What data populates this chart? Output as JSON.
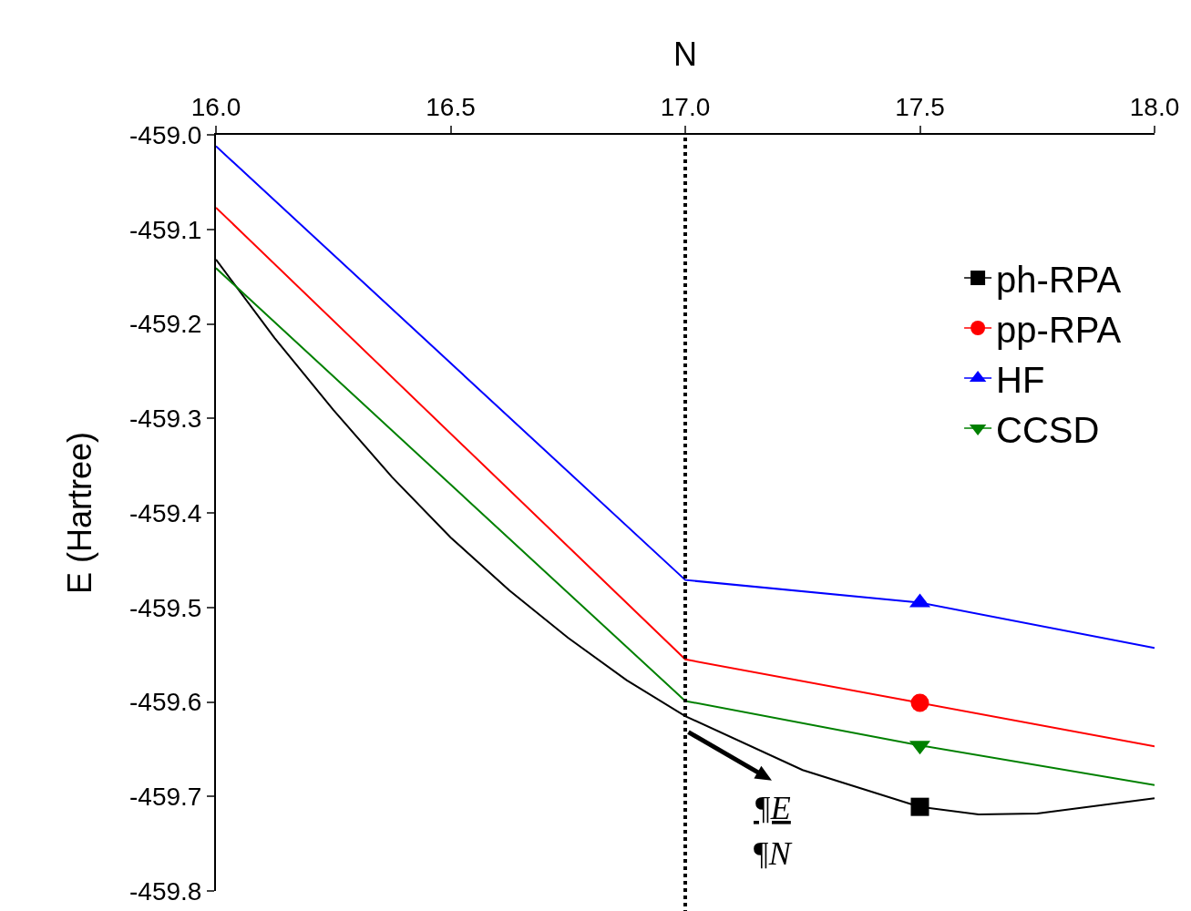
{
  "chart_data": {
    "type": "line",
    "xlabel": "N",
    "ylabel": "E (Hartree)",
    "xlim": [
      16,
      18
    ],
    "xticks": [
      {
        "value": 16,
        "label": "16.0"
      },
      16.5,
      {
        "value": 17,
        "label": "17.0"
      },
      17.5,
      {
        "value": 18,
        "label": "18.0"
      }
    ],
    "ylim": [
      -459.8,
      -459.0
    ],
    "yticks": [
      {
        "value": -459.8,
        "label": "-459.8"
      },
      {
        "value": -459.7,
        "label": "-459.7"
      },
      {
        "value": -459.6,
        "label": "-459.6"
      },
      {
        "value": -459.5,
        "label": "-459.5"
      },
      {
        "value": -459.4,
        "label": "-459.4"
      },
      {
        "value": -459.3,
        "label": "-459.3"
      },
      {
        "value": -459.2,
        "label": "-459.2"
      },
      {
        "value": -459.1,
        "label": "-459.1"
      },
      {
        "value": -459.0,
        "label": "-459.0"
      }
    ],
    "grid": false,
    "legend": "top right",
    "line_style": "solid",
    "marker": "none",
    "series": [
      {
        "color": "#000000",
        "x": [
          16,
          16.125,
          16.25,
          16.375,
          16.5,
          16.625,
          16.75,
          16.875,
          17,
          17.25,
          17.5,
          17.625,
          17.75,
          18
        ],
        "values": [
          -459.132,
          -459.215,
          -459.291,
          -459.362,
          -459.426,
          -459.482,
          -459.532,
          -459.577,
          -459.615,
          -459.672,
          -459.711,
          -459.719,
          -459.718,
          -459.702
        ]
      },
      {
        "color": "#ff0000",
        "x": [
          16,
          17,
          17.5,
          18
        ],
        "values": [
          -459.077,
          -459.555,
          -459.601,
          -459.647
        ]
      },
      {
        "color": "#0000ff",
        "x": [
          16,
          17,
          17.5,
          18
        ],
        "values": [
          -459.012,
          -459.471,
          -459.495,
          -459.543
        ]
      },
      {
        "color": "#008000",
        "x": [
          16,
          17,
          17.5,
          18
        ],
        "values": [
          -459.141,
          -459.599,
          -459.646,
          -459.688
        ]
      },
      {
        "type": "scatter",
        "name": "ph-RPA",
        "color": "#000000",
        "marker": "square",
        "x": [
          17.5
        ],
        "values": [
          -459.711
        ]
      },
      {
        "type": "scatter",
        "name": "pp-RPA",
        "color": "#ff0000",
        "marker": "circle",
        "x": [
          17.5
        ],
        "values": [
          -459.601
        ]
      },
      {
        "type": "scatter",
        "name": "HF",
        "color": "#0000ff",
        "marker": "triangle",
        "x": [
          17.5
        ],
        "values": [
          -459.495
        ]
      },
      {
        "type": "scatter",
        "name": "CCSD",
        "color": "#008000",
        "marker": "triangle-down",
        "x": [
          17.5
        ],
        "values": [
          -459.646
        ]
      }
    ],
    "ref_lines": [
      {
        "axis": "x",
        "value": 17,
        "color": "#000000",
        "line_style": "dotted"
      }
    ],
    "annotations": [
      {
        "text": "¶E",
        "x": 17,
        "y": -459.63
      },
      "¶N"
    ]
  }
}
